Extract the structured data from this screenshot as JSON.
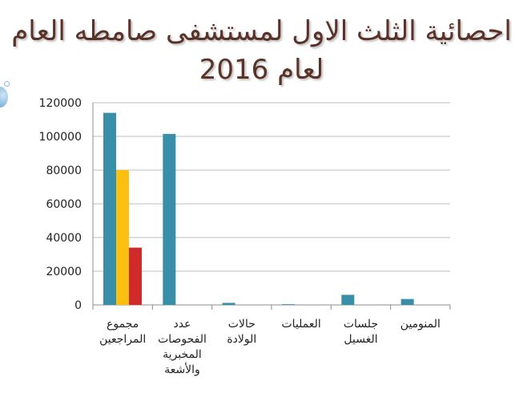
{
  "title_line1": "احصائية الثلث الاول لمستشفى صامطه العام",
  "title_line2": "لعام 2016",
  "chart_data": {
    "type": "bar",
    "title": "احصائية الثلث الاول لمستشفى صامطه العام لعام 2016",
    "categories": [
      [
        "مجموع",
        "المراجعين"
      ],
      [
        "عدد",
        "الفحوصات",
        "المخبرية",
        "والأشعة"
      ],
      [
        "حالات",
        "الولادة"
      ],
      [
        "العمليات"
      ],
      [
        "جلسات",
        "الغسيل"
      ],
      [
        "المنومين"
      ]
    ],
    "series": [
      {
        "color": "#3a8fa8",
        "values": [
          114000,
          101500,
          1200,
          400,
          6000,
          3500
        ]
      },
      {
        "color": "#fbbf10",
        "values": [
          80000,
          null,
          null,
          null,
          null,
          null
        ]
      },
      {
        "color": "#d02a2a",
        "values": [
          34000,
          null,
          null,
          null,
          null,
          null
        ]
      }
    ],
    "ylim": [
      0,
      120000
    ],
    "yticks": [
      "0",
      "20000",
      "40000",
      "60000",
      "80000",
      "100000",
      "120000"
    ],
    "grid": true,
    "legend": "none"
  }
}
